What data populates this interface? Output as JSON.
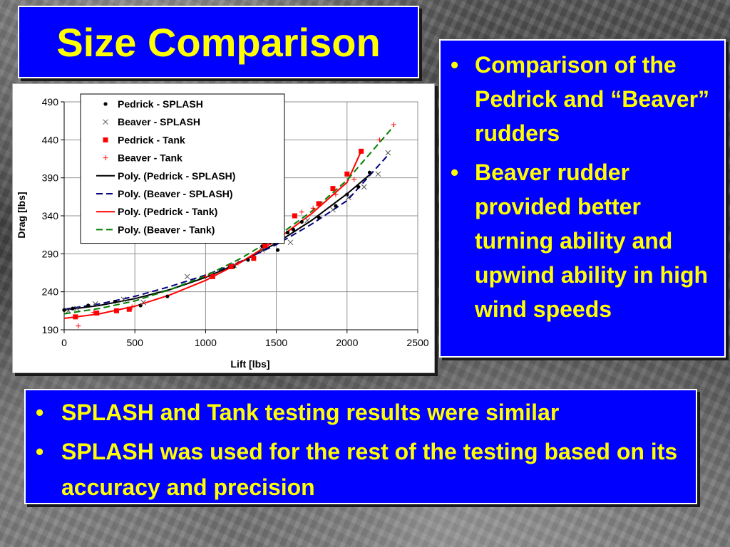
{
  "title": "Size Comparison",
  "right_bullets": [
    "Comparison of the Pedrick and “Beaver” rudders",
    "Beaver rudder provided better turning ability and upwind ability in high wind speeds"
  ],
  "bottom_bullets": [
    "SPLASH and Tank testing results were similar",
    "SPLASH was used for the rest of the testing based on its accuracy and precision"
  ],
  "bullet_glyph": "•",
  "colors": {
    "panel": "#0000ff",
    "text": "#ffff00",
    "tank": "#ff0000",
    "beaver_tank_fit": "#008000",
    "beaver_splash_fit": "#000080"
  },
  "chart_data": {
    "type": "scatter",
    "xlabel": "Lift [lbs]",
    "ylabel": "Drag [lbs]",
    "xlim": [
      0,
      2500
    ],
    "ylim": [
      190,
      490
    ],
    "x_ticks": [
      0,
      500,
      1000,
      1500,
      2000,
      2500
    ],
    "y_ticks": [
      190,
      240,
      290,
      340,
      390,
      440,
      490
    ],
    "grid": true,
    "legend_position": "top-left",
    "series": [
      {
        "name": "Pedrick - SPLASH",
        "marker": "dot",
        "color": "#000000",
        "points": [
          [
            0,
            216
          ],
          [
            60,
            218
          ],
          [
            170,
            222
          ],
          [
            360,
            227
          ],
          [
            540,
            222
          ],
          [
            730,
            234
          ],
          [
            1050,
            260
          ],
          [
            1200,
            273
          ],
          [
            1300,
            282
          ],
          [
            1400,
            300
          ],
          [
            1510,
            295
          ],
          [
            1580,
            318
          ],
          [
            1620,
            322
          ],
          [
            1680,
            332
          ],
          [
            1800,
            338
          ],
          [
            1920,
            353
          ],
          [
            2000,
            368
          ],
          [
            2080,
            378
          ],
          [
            2160,
            397
          ]
        ]
      },
      {
        "name": "Beaver - SPLASH",
        "marker": "x",
        "color": "#000000",
        "points": [
          [
            30,
            215
          ],
          [
            90,
            218
          ],
          [
            220,
            224
          ],
          [
            420,
            230
          ],
          [
            560,
            226
          ],
          [
            870,
            260
          ],
          [
            1040,
            262
          ],
          [
            1200,
            275
          ],
          [
            1400,
            295
          ],
          [
            1600,
            305
          ],
          [
            1720,
            334
          ],
          [
            1900,
            348
          ],
          [
            2010,
            364
          ],
          [
            2120,
            378
          ],
          [
            2220,
            395
          ],
          [
            2290,
            423
          ]
        ]
      },
      {
        "name": "Pedrick - Tank",
        "marker": "square",
        "color": "#ff0000",
        "points": [
          [
            80,
            207
          ],
          [
            230,
            212
          ],
          [
            370,
            215
          ],
          [
            460,
            217
          ],
          [
            1050,
            260
          ],
          [
            1180,
            273
          ],
          [
            1340,
            284
          ],
          [
            1420,
            301
          ],
          [
            1500,
            310
          ],
          [
            1630,
            340
          ],
          [
            1800,
            356
          ],
          [
            1900,
            376
          ],
          [
            2000,
            395
          ],
          [
            2100,
            425
          ]
        ]
      },
      {
        "name": "Beaver - Tank",
        "marker": "plus",
        "color": "#ff0000",
        "points": [
          [
            100,
            195
          ],
          [
            210,
            213
          ],
          [
            480,
            220
          ],
          [
            1000,
            260
          ],
          [
            1230,
            278
          ],
          [
            1460,
            305
          ],
          [
            1680,
            345
          ],
          [
            1760,
            350
          ],
          [
            1920,
            368
          ],
          [
            2050,
            388
          ],
          [
            2230,
            440
          ],
          [
            2330,
            460
          ]
        ]
      },
      {
        "name": "Poly. (Pedrick - SPLASH)",
        "line": "solid",
        "color": "#000000",
        "points": [
          [
            0,
            216
          ],
          [
            250,
            222
          ],
          [
            500,
            231
          ],
          [
            750,
            243
          ],
          [
            1000,
            259
          ],
          [
            1250,
            279
          ],
          [
            1500,
            304
          ],
          [
            1750,
            334
          ],
          [
            2000,
            369
          ],
          [
            2160,
            394
          ]
        ]
      },
      {
        "name": "Poly. (Beaver - SPLASH)",
        "line": "dashed",
        "color": "#000080",
        "points": [
          [
            0,
            217
          ],
          [
            250,
            224
          ],
          [
            500,
            234
          ],
          [
            750,
            247
          ],
          [
            1000,
            262
          ],
          [
            1250,
            280
          ],
          [
            1500,
            302
          ],
          [
            1750,
            329
          ],
          [
            2000,
            360
          ],
          [
            2290,
            420
          ]
        ]
      },
      {
        "name": "Poly. (Pedrick - Tank)",
        "line": "solid",
        "color": "#ff0000",
        "points": [
          [
            0,
            205
          ],
          [
            250,
            211
          ],
          [
            500,
            221
          ],
          [
            750,
            236
          ],
          [
            1000,
            255
          ],
          [
            1250,
            279
          ],
          [
            1500,
            308
          ],
          [
            1750,
            343
          ],
          [
            2000,
            384
          ],
          [
            2100,
            425
          ]
        ]
      },
      {
        "name": "Poly. (Beaver - Tank)",
        "line": "dashed",
        "color": "#008000",
        "points": [
          [
            0,
            211
          ],
          [
            250,
            218
          ],
          [
            500,
            228
          ],
          [
            750,
            243
          ],
          [
            1000,
            261
          ],
          [
            1250,
            284
          ],
          [
            1500,
            312
          ],
          [
            1750,
            346
          ],
          [
            2000,
            387
          ],
          [
            2330,
            458
          ]
        ]
      }
    ]
  }
}
